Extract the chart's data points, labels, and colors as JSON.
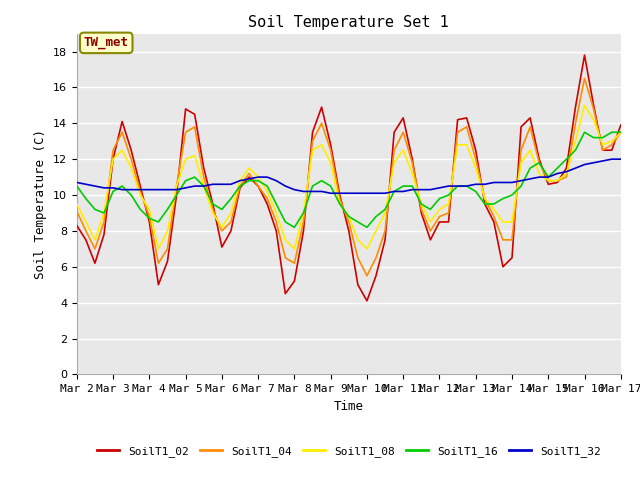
{
  "title": "Soil Temperature Set 1",
  "xlabel": "Time",
  "ylabel": "Soil Temperature (C)",
  "ylim": [
    0,
    19
  ],
  "yticks": [
    0,
    2,
    4,
    6,
    8,
    10,
    12,
    14,
    16,
    18
  ],
  "annotation": "TW_met",
  "fig_bg_color": "#ffffff",
  "plot_bg_color": "#e8e8e8",
  "grid_color": "#ffffff",
  "series": {
    "SoilT1_02": {
      "color": "#cc0000",
      "values": [
        8.3,
        7.5,
        6.2,
        7.8,
        12.0,
        14.1,
        12.5,
        10.5,
        8.5,
        5.0,
        6.3,
        10.0,
        14.8,
        14.5,
        11.5,
        9.5,
        7.1,
        8.0,
        10.4,
        11.0,
        10.5,
        9.5,
        8.0,
        4.5,
        5.2,
        8.0,
        13.5,
        14.9,
        12.8,
        10.0,
        8.0,
        5.0,
        4.1,
        5.5,
        7.5,
        13.5,
        14.3,
        12.0,
        9.0,
        7.5,
        8.5,
        8.5,
        14.2,
        14.3,
        12.5,
        9.5,
        8.5,
        6.0,
        6.5,
        13.8,
        14.3,
        12.0,
        10.6,
        10.7,
        11.5,
        14.9,
        17.8,
        15.0,
        12.5,
        12.5,
        13.9
      ]
    },
    "SoilT1_04": {
      "color": "#ff8c00",
      "values": [
        9.1,
        8.0,
        7.0,
        8.5,
        12.5,
        13.5,
        12.0,
        10.2,
        8.8,
        6.2,
        7.0,
        10.5,
        13.5,
        13.8,
        11.0,
        9.2,
        8.0,
        8.5,
        10.5,
        11.2,
        10.5,
        9.8,
        8.5,
        6.5,
        6.2,
        8.5,
        13.0,
        14.0,
        12.5,
        9.8,
        8.5,
        6.5,
        5.5,
        6.5,
        8.0,
        12.5,
        13.5,
        11.8,
        9.2,
        8.0,
        8.8,
        9.0,
        13.5,
        13.8,
        12.0,
        9.8,
        8.8,
        7.5,
        7.5,
        12.5,
        13.8,
        11.8,
        10.8,
        10.8,
        11.0,
        14.0,
        16.5,
        14.8,
        12.5,
        12.8,
        13.5
      ]
    },
    "SoilT1_08": {
      "color": "#ffee00",
      "values": [
        9.5,
        8.5,
        7.5,
        9.0,
        12.0,
        12.5,
        11.5,
        10.0,
        9.2,
        7.0,
        8.0,
        10.5,
        12.0,
        12.2,
        10.5,
        9.0,
        8.2,
        9.0,
        10.8,
        11.5,
        11.0,
        10.2,
        9.0,
        7.5,
        7.0,
        9.0,
        12.5,
        12.8,
        11.8,
        9.5,
        8.8,
        7.5,
        7.0,
        8.0,
        9.0,
        11.8,
        12.5,
        11.2,
        9.5,
        8.5,
        9.2,
        9.5,
        12.8,
        12.8,
        11.5,
        9.8,
        9.2,
        8.5,
        8.5,
        11.8,
        12.5,
        11.2,
        10.8,
        10.8,
        11.2,
        13.0,
        15.0,
        14.2,
        12.8,
        13.0,
        13.5
      ]
    },
    "SoilT1_16": {
      "color": "#00cc00",
      "values": [
        10.5,
        9.8,
        9.2,
        9.0,
        10.2,
        10.5,
        10.0,
        9.2,
        8.7,
        8.5,
        9.2,
        10.0,
        10.8,
        11.0,
        10.5,
        9.5,
        9.2,
        9.8,
        10.5,
        10.8,
        10.8,
        10.5,
        9.5,
        8.5,
        8.2,
        9.0,
        10.5,
        10.8,
        10.5,
        9.5,
        8.8,
        8.5,
        8.2,
        8.8,
        9.2,
        10.2,
        10.5,
        10.5,
        9.5,
        9.2,
        9.8,
        10.0,
        10.5,
        10.5,
        10.2,
        9.5,
        9.5,
        9.8,
        10.0,
        10.5,
        11.5,
        11.8,
        11.0,
        11.5,
        12.0,
        12.5,
        13.5,
        13.2,
        13.2,
        13.5,
        13.5
      ]
    },
    "SoilT1_32": {
      "color": "#0000cc",
      "values": [
        10.7,
        10.6,
        10.5,
        10.4,
        10.4,
        10.3,
        10.3,
        10.3,
        10.3,
        10.3,
        10.3,
        10.3,
        10.4,
        10.5,
        10.5,
        10.6,
        10.6,
        10.6,
        10.8,
        10.9,
        11.0,
        11.0,
        10.8,
        10.5,
        10.3,
        10.2,
        10.2,
        10.2,
        10.1,
        10.1,
        10.1,
        10.1,
        10.1,
        10.1,
        10.1,
        10.2,
        10.2,
        10.3,
        10.3,
        10.3,
        10.4,
        10.5,
        10.5,
        10.5,
        10.6,
        10.6,
        10.7,
        10.7,
        10.7,
        10.8,
        10.9,
        11.0,
        11.0,
        11.2,
        11.3,
        11.5,
        11.7,
        11.8,
        11.9,
        12.0,
        12.0
      ]
    }
  },
  "n_points": 61,
  "x_days": 15,
  "xtick_labels": [
    "Mar 2",
    "Mar 3",
    "Mar 4",
    "Mar 5",
    "Mar 6",
    "Mar 7",
    "Mar 8",
    "Mar 9",
    "Mar 10",
    "Mar 11",
    "Mar 12",
    "Mar 13",
    "Mar 14",
    "Mar 15",
    "Mar 16",
    "Mar 17"
  ],
  "xtick_positions": [
    0,
    1,
    2,
    3,
    4,
    5,
    6,
    7,
    8,
    9,
    10,
    11,
    12,
    13,
    14,
    15
  ],
  "legend_entries": [
    "SoilT1_02",
    "SoilT1_04",
    "SoilT1_08",
    "SoilT1_16",
    "SoilT1_32"
  ],
  "legend_colors": [
    "#cc0000",
    "#ff8c00",
    "#ffee00",
    "#00cc00",
    "#0000cc"
  ],
  "title_fontsize": 11,
  "axis_fontsize": 9,
  "tick_fontsize": 8,
  "legend_fontsize": 8,
  "linewidth": 1.2
}
